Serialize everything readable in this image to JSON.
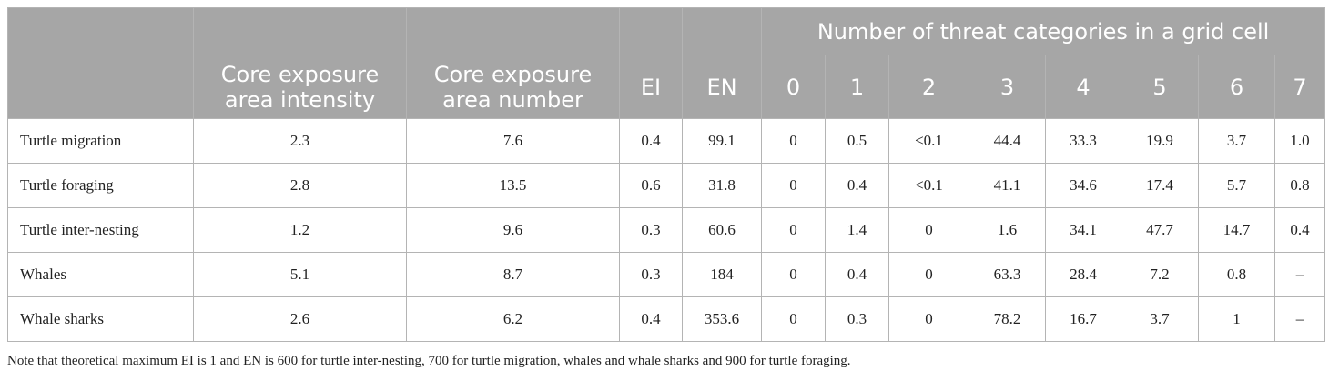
{
  "table": {
    "group_header": "Number of threat categories in a grid cell",
    "columns": {
      "core_intensity": "Core exposure area intensity",
      "core_number": "Core exposure area number",
      "ei": "EI",
      "en": "EN",
      "threat_counts": [
        "0",
        "1",
        "2",
        "3",
        "4",
        "5",
        "6",
        "7"
      ]
    },
    "rows": [
      {
        "label": "Turtle migration",
        "cells": [
          "2.3",
          "7.6",
          "0.4",
          "99.1",
          "0",
          "0.5",
          "<0.1",
          "44.4",
          "33.3",
          "19.9",
          "3.7",
          "1.0"
        ]
      },
      {
        "label": "Turtle foraging",
        "cells": [
          "2.8",
          "13.5",
          "0.6",
          "31.8",
          "0",
          "0.4",
          "<0.1",
          "41.1",
          "34.6",
          "17.4",
          "5.7",
          "0.8"
        ]
      },
      {
        "label": "Turtle inter-nesting",
        "cells": [
          "1.2",
          "9.6",
          "0.3",
          "60.6",
          "0",
          "1.4",
          "0",
          "1.6",
          "34.1",
          "47.7",
          "14.7",
          "0.4"
        ]
      },
      {
        "label": "Whales",
        "cells": [
          "5.1",
          "8.7",
          "0.3",
          "184",
          "0",
          "0.4",
          "0",
          "63.3",
          "28.4",
          "7.2",
          "0.8",
          "–"
        ]
      },
      {
        "label": "Whale sharks",
        "cells": [
          "2.6",
          "6.2",
          "0.4",
          "353.6",
          "0",
          "0.3",
          "0",
          "78.2",
          "16.7",
          "3.7",
          "1",
          "–"
        ]
      }
    ],
    "note": "Note that theoretical maximum EI is 1 and EN is 600 for turtle inter-nesting, 700 for turtle migration, whales and whale sharks and 900 for turtle foraging."
  }
}
